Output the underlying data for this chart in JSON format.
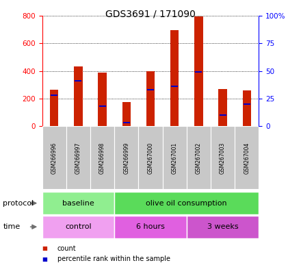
{
  "title": "GDS3691 / 171090",
  "samples": [
    "GSM266996",
    "GSM266997",
    "GSM266998",
    "GSM266999",
    "GSM267000",
    "GSM267001",
    "GSM267002",
    "GSM267003",
    "GSM267004"
  ],
  "count_values": [
    265,
    435,
    390,
    175,
    400,
    695,
    795,
    270,
    258
  ],
  "percentile_values": [
    28,
    41,
    18,
    3,
    33,
    36,
    49,
    10,
    20
  ],
  "ylim_left": [
    0,
    800
  ],
  "ylim_right": [
    0,
    100
  ],
  "yticks_left": [
    0,
    200,
    400,
    600,
    800
  ],
  "yticks_right": [
    0,
    25,
    50,
    75,
    100
  ],
  "ytick_labels_right": [
    "0",
    "25",
    "50",
    "75",
    "100%"
  ],
  "protocol_groups": [
    {
      "label": "baseline",
      "start": 0,
      "end": 3,
      "color": "#90EE90"
    },
    {
      "label": "olive oil consumption",
      "start": 3,
      "end": 9,
      "color": "#5ADB5A"
    }
  ],
  "time_groups": [
    {
      "label": "control",
      "start": 0,
      "end": 3,
      "color": "#F0A0F0"
    },
    {
      "label": "6 hours",
      "start": 3,
      "end": 6,
      "color": "#E060E0"
    },
    {
      "label": "3 weeks",
      "start": 6,
      "end": 9,
      "color": "#CC55CC"
    }
  ],
  "bar_color": "#CC2200",
  "percentile_color": "#0000CC",
  "bar_width": 0.35,
  "label_box_color": "#C8C8C8",
  "grid_color": "#000000",
  "protocol_label_color": "#404040",
  "time_label_color": "#404040"
}
